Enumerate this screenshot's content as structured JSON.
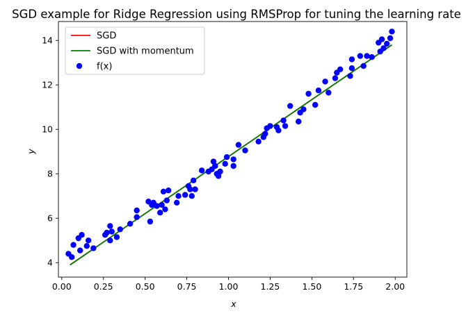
{
  "chart_data": {
    "type": "scatter",
    "title": "SGD example for Ridge Regression using RMSProp for tuning the learning rate",
    "xlabel": "x",
    "ylabel": "y",
    "xlim": [
      -0.02,
      2.07
    ],
    "ylim": [
      3.35,
      14.85
    ],
    "x_ticks": [
      0.0,
      0.25,
      0.5,
      0.75,
      1.0,
      1.25,
      1.5,
      1.75,
      2.0
    ],
    "x_tick_labels": [
      "0.00",
      "0.25",
      "0.50",
      "0.75",
      "1.00",
      "1.25",
      "1.50",
      "1.75",
      "2.00"
    ],
    "y_ticks": [
      4,
      6,
      8,
      10,
      12,
      14
    ],
    "y_tick_labels": [
      "4",
      "6",
      "8",
      "10",
      "12",
      "14"
    ],
    "grid": false,
    "legend_position": "top-left",
    "series": [
      {
        "name": "SGD",
        "kind": "line",
        "color": "#ff0000",
        "x": [
          0.05,
          1.98
        ],
        "y": [
          3.9,
          13.8
        ]
      },
      {
        "name": "SGD with momentum",
        "kind": "line",
        "color": "#008000",
        "x": [
          0.05,
          1.98
        ],
        "y": [
          3.9,
          13.8
        ]
      },
      {
        "name": "f(x)",
        "kind": "scatter",
        "color": "#0000ff",
        "points": [
          [
            0.04,
            4.4
          ],
          [
            0.06,
            4.25
          ],
          [
            0.07,
            4.8
          ],
          [
            0.1,
            5.1
          ],
          [
            0.11,
            4.55
          ],
          [
            0.12,
            5.25
          ],
          [
            0.15,
            4.75
          ],
          [
            0.16,
            5.0
          ],
          [
            0.19,
            4.65
          ],
          [
            0.26,
            5.25
          ],
          [
            0.27,
            5.35
          ],
          [
            0.29,
            5.65
          ],
          [
            0.29,
            5.0
          ],
          [
            0.3,
            5.4
          ],
          [
            0.33,
            5.15
          ],
          [
            0.35,
            5.5
          ],
          [
            0.41,
            5.75
          ],
          [
            0.45,
            6.35
          ],
          [
            0.45,
            6.05
          ],
          [
            0.52,
            6.75
          ],
          [
            0.53,
            5.85
          ],
          [
            0.54,
            6.6
          ],
          [
            0.55,
            6.7
          ],
          [
            0.57,
            6.55
          ],
          [
            0.59,
            6.25
          ],
          [
            0.6,
            6.6
          ],
          [
            0.61,
            7.2
          ],
          [
            0.62,
            6.4
          ],
          [
            0.63,
            6.8
          ],
          [
            0.64,
            7.25
          ],
          [
            0.69,
            6.7
          ],
          [
            0.7,
            7.0
          ],
          [
            0.74,
            7.05
          ],
          [
            0.76,
            7.45
          ],
          [
            0.77,
            7.3
          ],
          [
            0.78,
            7.0
          ],
          [
            0.79,
            7.7
          ],
          [
            0.8,
            7.3
          ],
          [
            0.84,
            8.15
          ],
          [
            0.88,
            8.1
          ],
          [
            0.9,
            8.2
          ],
          [
            0.91,
            8.55
          ],
          [
            0.92,
            8.35
          ],
          [
            0.93,
            8.0
          ],
          [
            0.94,
            7.9
          ],
          [
            0.95,
            8.1
          ],
          [
            0.98,
            8.45
          ],
          [
            0.99,
            8.75
          ],
          [
            1.03,
            8.65
          ],
          [
            1.03,
            8.35
          ],
          [
            1.06,
            9.3
          ],
          [
            1.1,
            9.05
          ],
          [
            1.18,
            9.45
          ],
          [
            1.21,
            9.65
          ],
          [
            1.22,
            9.8
          ],
          [
            1.23,
            10.05
          ],
          [
            1.25,
            10.15
          ],
          [
            1.29,
            10.1
          ],
          [
            1.3,
            9.95
          ],
          [
            1.33,
            10.4
          ],
          [
            1.34,
            10.15
          ],
          [
            1.37,
            11.05
          ],
          [
            1.42,
            10.35
          ],
          [
            1.43,
            10.75
          ],
          [
            1.45,
            10.9
          ],
          [
            1.48,
            11.6
          ],
          [
            1.52,
            11.1
          ],
          [
            1.54,
            11.75
          ],
          [
            1.58,
            12.15
          ],
          [
            1.6,
            11.65
          ],
          [
            1.64,
            12.3
          ],
          [
            1.65,
            12.55
          ],
          [
            1.67,
            12.7
          ],
          [
            1.73,
            12.4
          ],
          [
            1.74,
            12.75
          ],
          [
            1.74,
            13.15
          ],
          [
            1.79,
            13.3
          ],
          [
            1.81,
            12.85
          ],
          [
            1.83,
            13.3
          ],
          [
            1.86,
            13.25
          ],
          [
            1.9,
            13.9
          ],
          [
            1.91,
            13.5
          ],
          [
            1.92,
            14.05
          ],
          [
            1.93,
            13.65
          ],
          [
            1.95,
            13.85
          ],
          [
            1.97,
            14.1
          ],
          [
            1.98,
            14.4
          ]
        ]
      }
    ]
  }
}
